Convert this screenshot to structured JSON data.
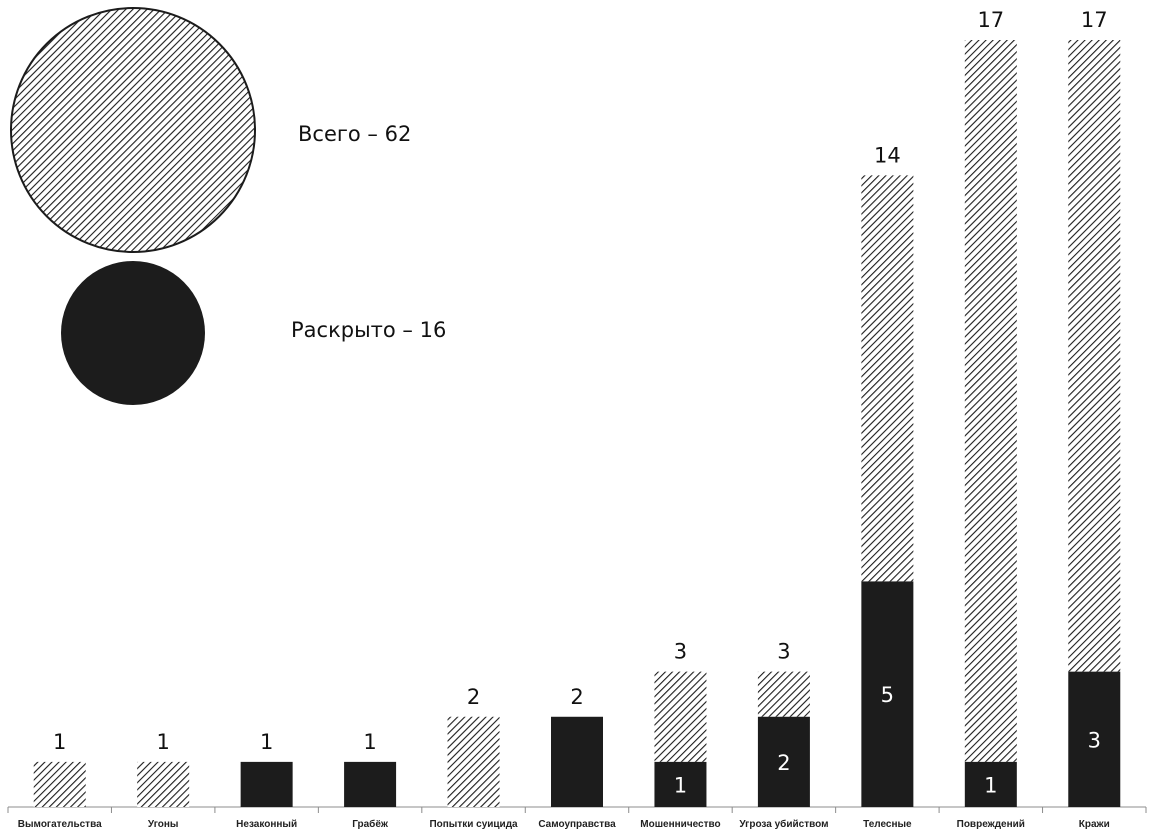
{
  "chart_data": {
    "type": "bar",
    "stacked": true,
    "categories": [
      "Вымогательства",
      "Угоны",
      "Незаконный",
      "Грабёж",
      "Попытки суицида",
      "Самоуправства",
      "Мошенничество",
      "Угроза убийством",
      "Телесные",
      "Повреждений",
      "Кражи"
    ],
    "totals": [
      1,
      1,
      1,
      1,
      2,
      2,
      3,
      3,
      14,
      17,
      17
    ],
    "solved": [
      0,
      0,
      1,
      1,
      0,
      2,
      1,
      2,
      5,
      1,
      3
    ],
    "legend": {
      "total_text": "Всего – 62",
      "solved_text": "Раскрыто – 16"
    },
    "ylim": [
      0,
      17
    ],
    "grid": false,
    "legend_placement": "top-left",
    "colors": {
      "solved": "#1c1c1c",
      "total_hatch": "#1c1c1c",
      "background": "#ffffff",
      "axis": "#8c8c8c"
    }
  }
}
